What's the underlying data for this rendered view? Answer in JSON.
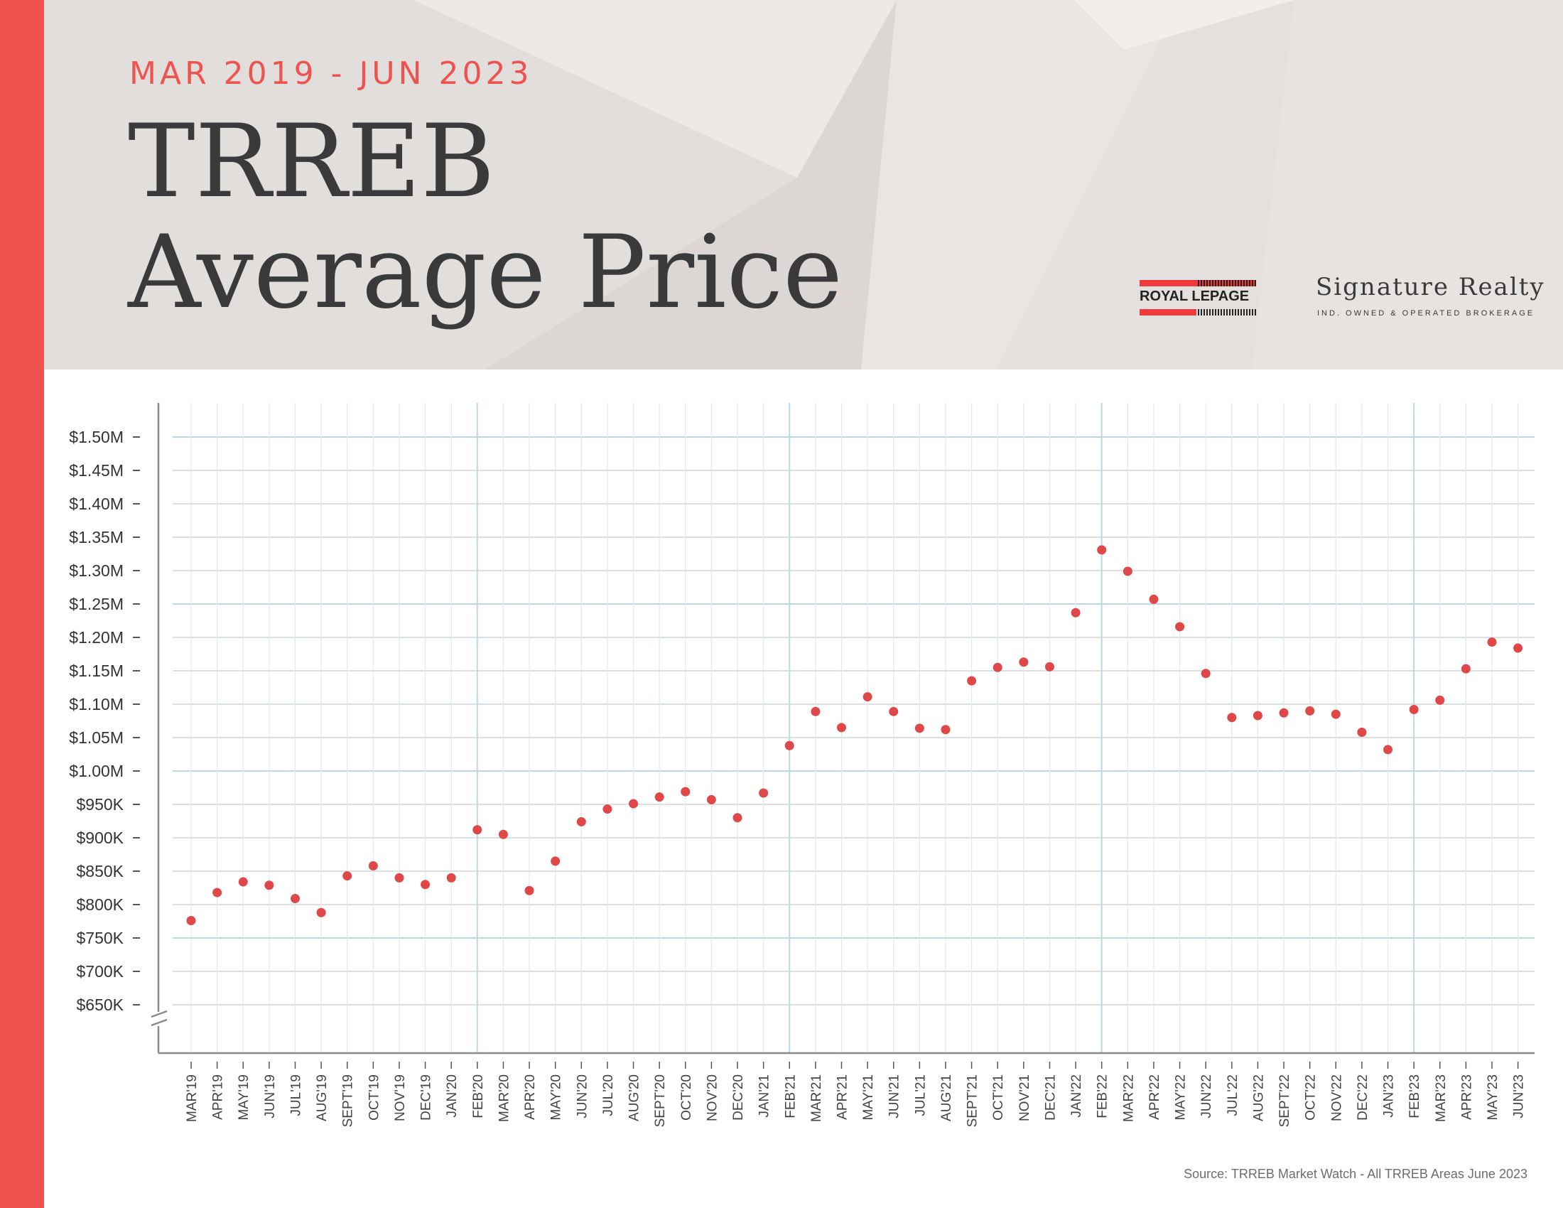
{
  "header": {
    "date_range": "MAR 2019 - JUN 2023",
    "title_line1": "TRREB",
    "title_line2": "Average Price"
  },
  "brand": {
    "logo_text": "ROYAL LEPAGE",
    "name": "Signature Realty",
    "subtitle": "IND. OWNED & OPERATED BROKERAGE"
  },
  "source": "Source: TRREB Market Watch - All TRREB Areas June 2023",
  "colors": {
    "accent": "#ef5350",
    "point": "#e04848",
    "grid": "#cfd6dc",
    "grid_major": "#bcd7e6",
    "text": "#3a3a3c"
  },
  "chart_data": {
    "type": "scatter",
    "categories": [
      "MAR'19",
      "APR'19",
      "MAY'19",
      "JUN'19",
      "JUL'19",
      "AUG'19",
      "SEPT'19",
      "OCT'19",
      "NOV'19",
      "DEC'19",
      "JAN'20",
      "FEB'20",
      "MAR'20",
      "APR'20",
      "MAY'20",
      "JUN'20",
      "JUL'20",
      "AUG'20",
      "SEPT'20",
      "OCT'20",
      "NOV'20",
      "DEC'20",
      "JAN'21",
      "FEB'21",
      "MAR'21",
      "APR'21",
      "MAY'21",
      "JUN'21",
      "JUL'21",
      "AUG'21",
      "SEPT'21",
      "OCT'21",
      "NOV'21",
      "DEC'21",
      "JAN'22",
      "FEB'22",
      "MAR'22",
      "APR'22",
      "MAY'22",
      "JUN'22",
      "JUL'22",
      "AUG'22",
      "SEPT'22",
      "OCT'22",
      "NOV'22",
      "DEC'22",
      "JAN'23",
      "FEB'23",
      "MAR'23",
      "APR'23",
      "MAY'23",
      "JUN'23"
    ],
    "values": [
      776,
      818,
      834,
      829,
      809,
      788,
      843,
      858,
      840,
      830,
      840,
      912,
      905,
      821,
      865,
      924,
      943,
      951,
      961,
      969,
      957,
      930,
      967,
      1038,
      1089,
      1065,
      1111,
      1089,
      1064,
      1062,
      1135,
      1155,
      1163,
      1156,
      1237,
      1331,
      1299,
      1257,
      1216,
      1146,
      1080,
      1083,
      1087,
      1090,
      1085,
      1058,
      1032,
      1092,
      1106,
      1153,
      1193,
      1184
    ],
    "value_unit": "thousands of dollars",
    "y_tick_labels": [
      "$1.50M",
      "$1.45M",
      "$1.40M",
      "$1.35M",
      "$1.30M",
      "$1.25M",
      "$1.20M",
      "$1.15M",
      "$1.10M",
      "$1.05M",
      "$1.00M",
      "$950K",
      "$900K",
      "$850K",
      "$800K",
      "$750K",
      "$700K",
      "$650K"
    ],
    "ylim": [
      650,
      1500
    ],
    "grid": true,
    "xlabel": "",
    "ylabel": ""
  }
}
